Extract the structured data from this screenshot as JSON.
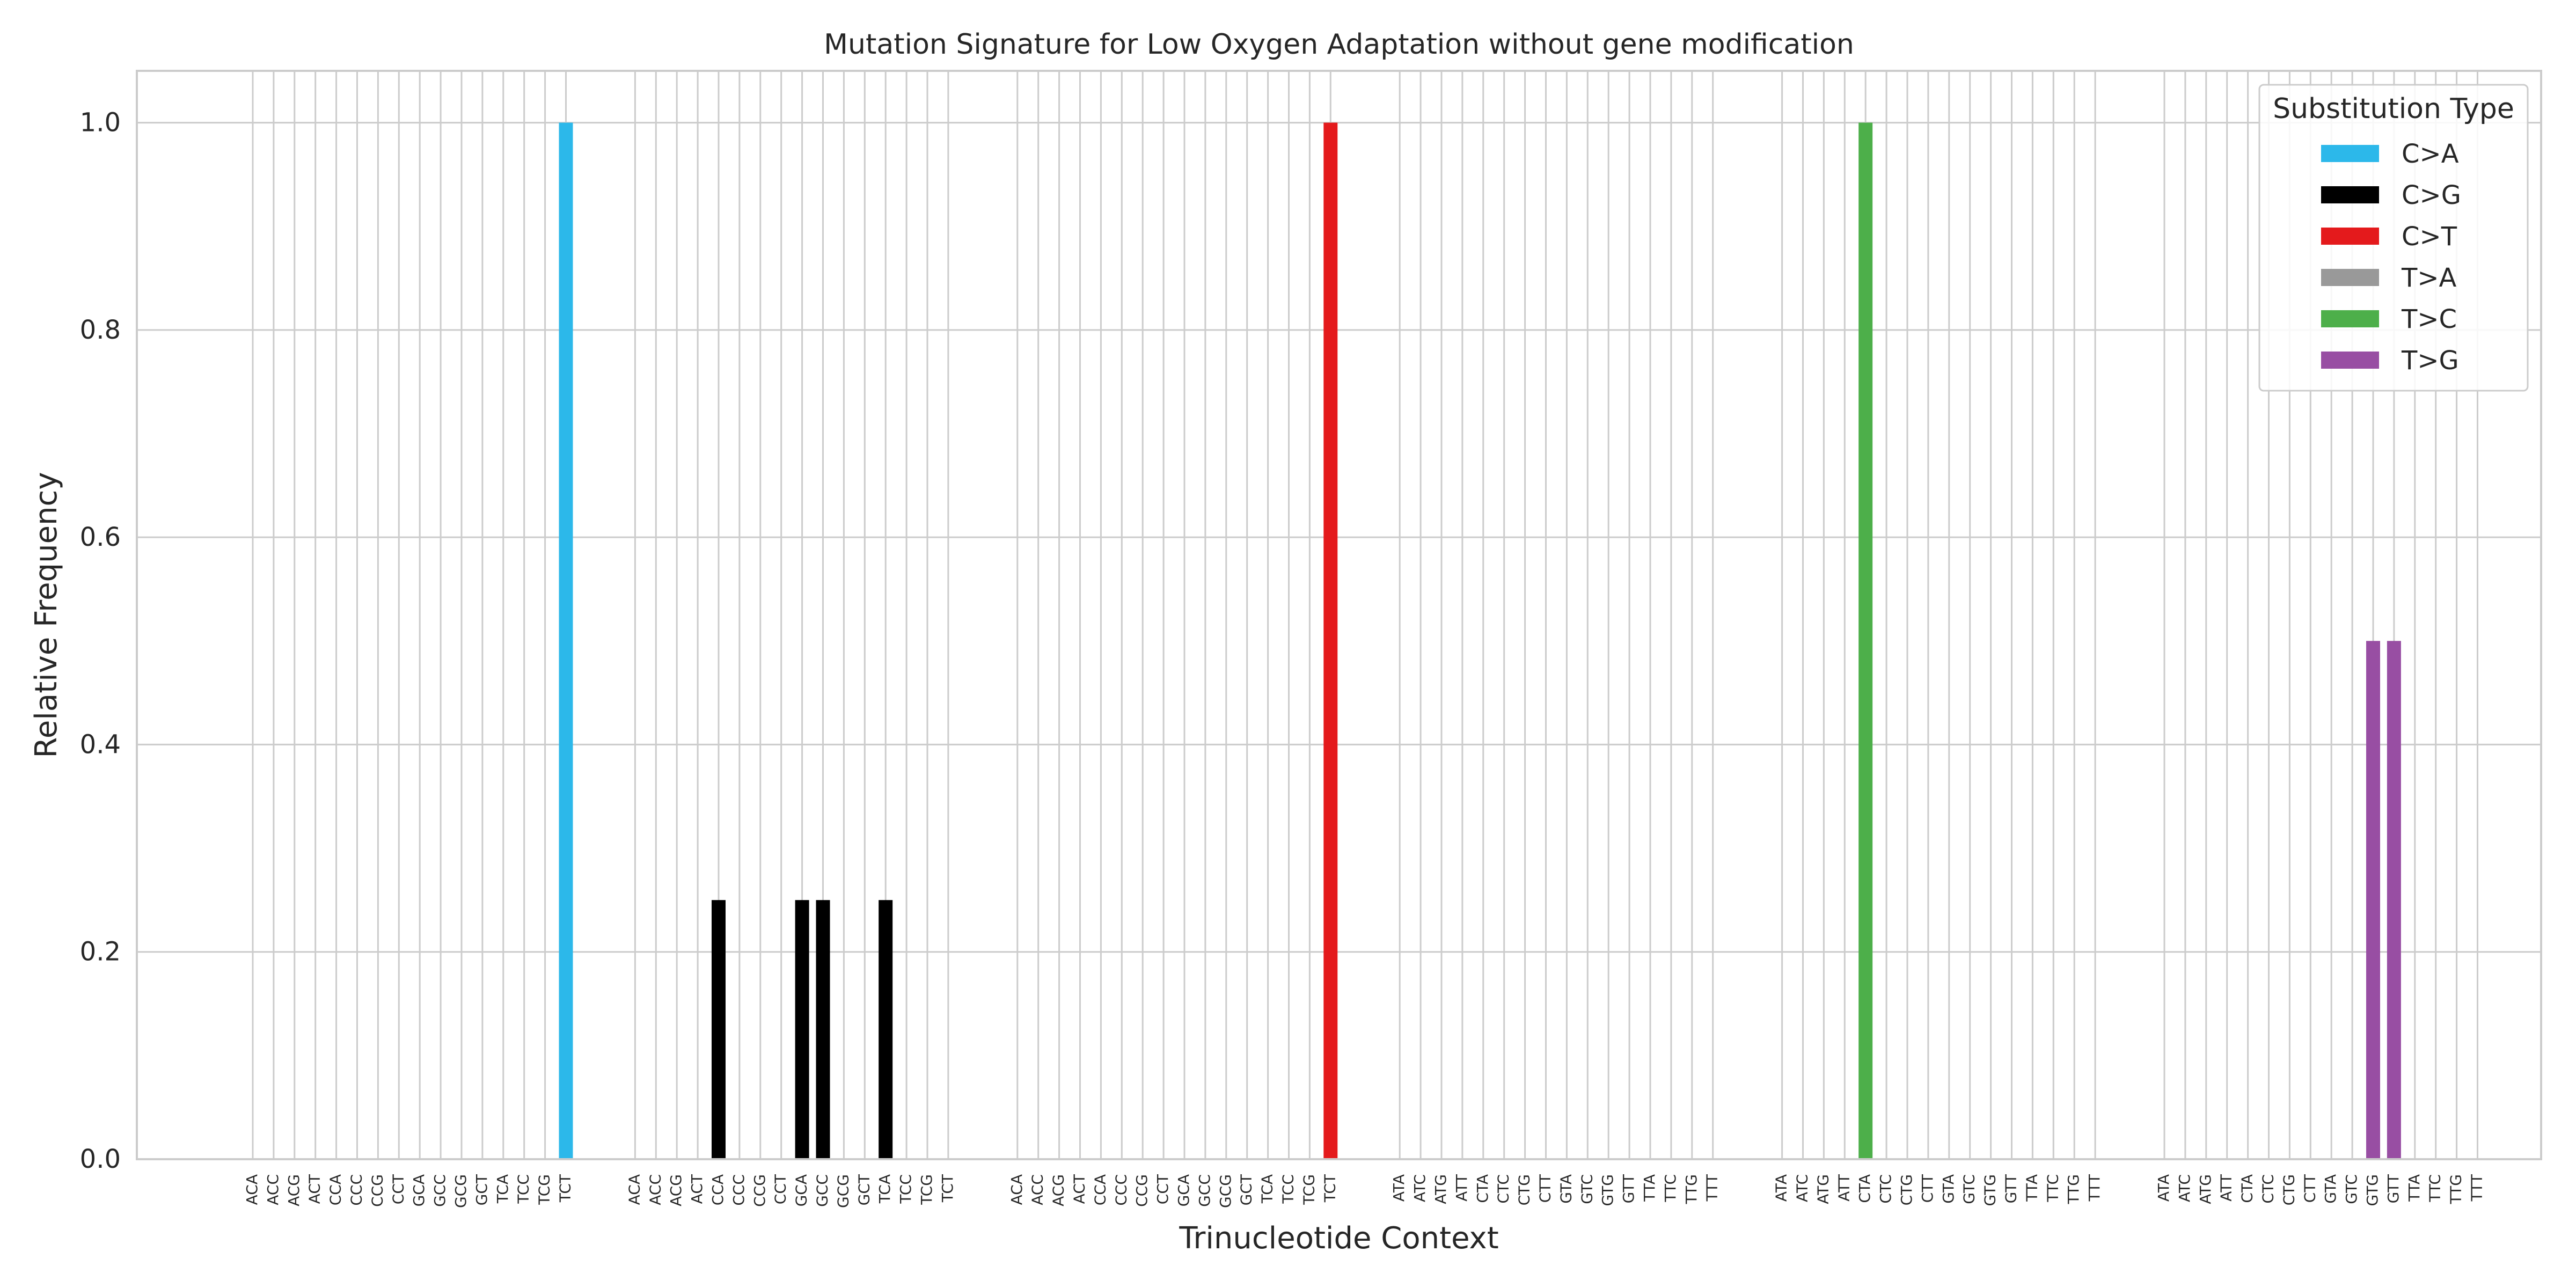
{
  "chart_data": {
    "type": "bar",
    "title": "Mutation Signature for Low Oxygen Adaptation without gene modification",
    "xlabel": "Trinucleotide Context",
    "ylabel": "Relative Frequency",
    "ylim": [
      0,
      1.05
    ],
    "yticks": [
      "0.0",
      "0.2",
      "0.4",
      "0.6",
      "0.8",
      "1.0"
    ],
    "grid": true,
    "legend": {
      "title": "Substitution Type",
      "placement": "top-right"
    },
    "groups": [
      {
        "name": "C>A",
        "color": "#2cb8ea",
        "contexts": [
          "ACA",
          "ACC",
          "ACG",
          "ACT",
          "CCA",
          "CCC",
          "CCG",
          "CCT",
          "GCA",
          "GCC",
          "GCG",
          "GCT",
          "TCA",
          "TCC",
          "TCG",
          "TCT"
        ],
        "values": [
          0,
          0,
          0,
          0,
          0,
          0,
          0,
          0,
          0,
          0,
          0,
          0,
          0,
          0,
          0,
          1.0
        ]
      },
      {
        "name": "C>G",
        "color": "#000000",
        "contexts": [
          "ACA",
          "ACC",
          "ACG",
          "ACT",
          "CCA",
          "CCC",
          "CCG",
          "CCT",
          "GCA",
          "GCC",
          "GCG",
          "GCT",
          "TCA",
          "TCC",
          "TCG",
          "TCT"
        ],
        "values": [
          0,
          0,
          0,
          0,
          0.25,
          0,
          0,
          0,
          0.25,
          0.25,
          0,
          0,
          0.25,
          0,
          0,
          0
        ]
      },
      {
        "name": "C>T",
        "color": "#e41a1c",
        "contexts": [
          "ACA",
          "ACC",
          "ACG",
          "ACT",
          "CCA",
          "CCC",
          "CCG",
          "CCT",
          "GCA",
          "GCC",
          "GCG",
          "GCT",
          "TCA",
          "TCC",
          "TCG",
          "TCT"
        ],
        "values": [
          0,
          0,
          0,
          0,
          0,
          0,
          0,
          0,
          0,
          0,
          0,
          0,
          0,
          0,
          0,
          1.0
        ]
      },
      {
        "name": "T>A",
        "color": "#999999",
        "contexts": [
          "ATA",
          "ATC",
          "ATG",
          "ATT",
          "CTA",
          "CTC",
          "CTG",
          "CTT",
          "GTA",
          "GTC",
          "GTG",
          "GTT",
          "TTA",
          "TTC",
          "TTG",
          "TTT"
        ],
        "values": [
          0,
          0,
          0,
          0,
          0,
          0,
          0,
          0,
          0,
          0,
          0,
          0,
          0,
          0,
          0,
          0
        ]
      },
      {
        "name": "T>C",
        "color": "#4daf4a",
        "contexts": [
          "ATA",
          "ATC",
          "ATG",
          "ATT",
          "CTA",
          "CTC",
          "CTG",
          "CTT",
          "GTA",
          "GTC",
          "GTG",
          "GTT",
          "TTA",
          "TTC",
          "TTG",
          "TTT"
        ],
        "values": [
          0,
          0,
          0,
          0,
          1.0,
          0,
          0,
          0,
          0,
          0,
          0,
          0,
          0,
          0,
          0,
          0
        ]
      },
      {
        "name": "T>G",
        "color": "#984ea3",
        "contexts": [
          "ATA",
          "ATC",
          "ATG",
          "ATT",
          "CTA",
          "CTC",
          "CTG",
          "CTT",
          "GTA",
          "GTC",
          "GTG",
          "GTT",
          "TTA",
          "TTC",
          "TTG",
          "TTT"
        ],
        "values": [
          0,
          0,
          0,
          0,
          0,
          0,
          0,
          0,
          0,
          0,
          0.5,
          0.5,
          0,
          0,
          0,
          0
        ]
      }
    ]
  }
}
